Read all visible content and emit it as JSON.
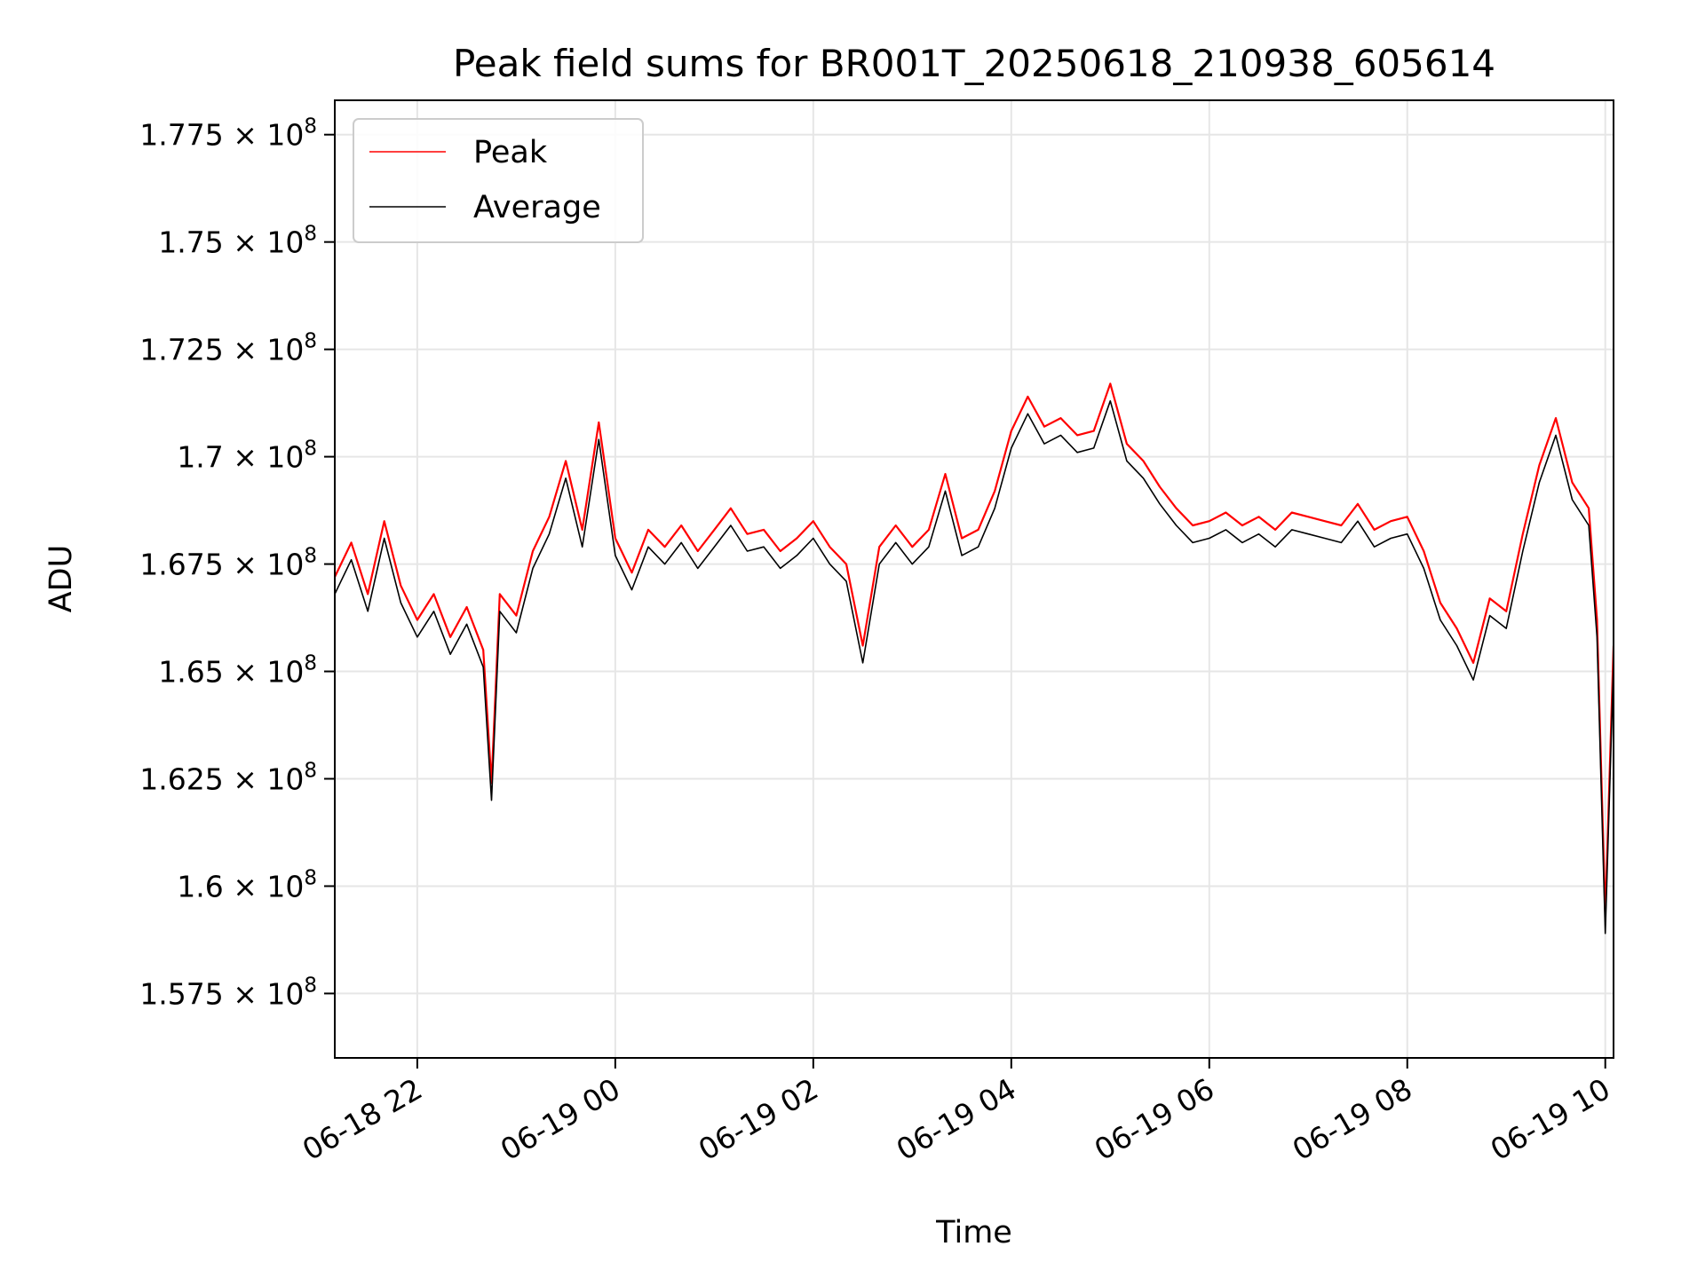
{
  "chart_data": {
    "type": "line",
    "title": "Peak field sums for BR001T_20250618_210938_605614",
    "xlabel": "Time",
    "ylabel": "ADU",
    "xlim": [
      "2025-06-18 21:10",
      "2025-06-19 10:05"
    ],
    "ylim": [
      156000000,
      178300000
    ],
    "grid": true,
    "legend_position": "upper-left",
    "x_ticks": [
      {
        "value": "2025-06-18 22:00",
        "label": "06-18 22"
      },
      {
        "value": "2025-06-19 00:00",
        "label": "06-19 00"
      },
      {
        "value": "2025-06-19 02:00",
        "label": "06-19 02"
      },
      {
        "value": "2025-06-19 04:00",
        "label": "06-19 04"
      },
      {
        "value": "2025-06-19 06:00",
        "label": "06-19 06"
      },
      {
        "value": "2025-06-19 08:00",
        "label": "06-19 08"
      },
      {
        "value": "2025-06-19 10:00",
        "label": "06-19 10"
      }
    ],
    "y_ticks": [
      {
        "value": 157500000,
        "mant": "1.575",
        "exp": "8"
      },
      {
        "value": 160000000,
        "mant": "1.6",
        "exp": "8"
      },
      {
        "value": 162500000,
        "mant": "1.625",
        "exp": "8"
      },
      {
        "value": 165000000,
        "mant": "1.65",
        "exp": "8"
      },
      {
        "value": 167500000,
        "mant": "1.675",
        "exp": "8"
      },
      {
        "value": 170000000,
        "mant": "1.7",
        "exp": "8"
      },
      {
        "value": 172500000,
        "mant": "1.725",
        "exp": "8"
      },
      {
        "value": 175000000,
        "mant": "1.75",
        "exp": "8"
      },
      {
        "value": 177500000,
        "mant": "1.775",
        "exp": "8"
      }
    ],
    "series": [
      {
        "name": "Peak",
        "color": "#ff0000",
        "x": [
          "2025-06-18 21:10",
          "2025-06-18 21:20",
          "2025-06-18 21:30",
          "2025-06-18 21:40",
          "2025-06-18 21:50",
          "2025-06-18 22:00",
          "2025-06-18 22:10",
          "2025-06-18 22:20",
          "2025-06-18 22:30",
          "2025-06-18 22:40",
          "2025-06-18 22:45",
          "2025-06-18 22:50",
          "2025-06-18 23:00",
          "2025-06-18 23:10",
          "2025-06-18 23:20",
          "2025-06-18 23:30",
          "2025-06-18 23:40",
          "2025-06-18 23:50",
          "2025-06-19 00:00",
          "2025-06-19 00:10",
          "2025-06-19 00:20",
          "2025-06-19 00:30",
          "2025-06-19 00:40",
          "2025-06-19 00:50",
          "2025-06-19 01:00",
          "2025-06-19 01:10",
          "2025-06-19 01:20",
          "2025-06-19 01:30",
          "2025-06-19 01:40",
          "2025-06-19 01:50",
          "2025-06-19 02:00",
          "2025-06-19 02:10",
          "2025-06-19 02:20",
          "2025-06-19 02:30",
          "2025-06-19 02:40",
          "2025-06-19 02:50",
          "2025-06-19 03:00",
          "2025-06-19 03:10",
          "2025-06-19 03:20",
          "2025-06-19 03:30",
          "2025-06-19 03:40",
          "2025-06-19 03:50",
          "2025-06-19 04:00",
          "2025-06-19 04:10",
          "2025-06-19 04:20",
          "2025-06-19 04:30",
          "2025-06-19 04:40",
          "2025-06-19 04:50",
          "2025-06-19 05:00",
          "2025-06-19 05:10",
          "2025-06-19 05:20",
          "2025-06-19 05:30",
          "2025-06-19 05:40",
          "2025-06-19 05:50",
          "2025-06-19 06:00",
          "2025-06-19 06:10",
          "2025-06-19 06:20",
          "2025-06-19 06:30",
          "2025-06-19 06:40",
          "2025-06-19 06:50",
          "2025-06-19 07:00",
          "2025-06-19 07:10",
          "2025-06-19 07:20",
          "2025-06-19 07:30",
          "2025-06-19 07:40",
          "2025-06-19 07:50",
          "2025-06-19 08:00",
          "2025-06-19 08:10",
          "2025-06-19 08:20",
          "2025-06-19 08:30",
          "2025-06-19 08:40",
          "2025-06-19 08:50",
          "2025-06-19 09:00",
          "2025-06-19 09:10",
          "2025-06-19 09:20",
          "2025-06-19 09:30",
          "2025-06-19 09:40",
          "2025-06-19 09:50",
          "2025-06-19 09:55",
          "2025-06-19 10:00",
          "2025-06-19 10:05"
        ],
        "y": [
          167200000,
          168000000,
          166800000,
          168500000,
          167000000,
          166200000,
          166800000,
          165800000,
          166500000,
          165500000,
          162400000,
          166800000,
          166300000,
          167800000,
          168600000,
          169900000,
          168300000,
          170800000,
          168100000,
          167300000,
          168300000,
          167900000,
          168400000,
          167800000,
          168300000,
          168800000,
          168200000,
          168300000,
          167800000,
          168100000,
          168500000,
          167900000,
          167500000,
          165600000,
          167900000,
          168400000,
          167900000,
          168300000,
          169600000,
          168100000,
          168300000,
          169200000,
          170600000,
          171400000,
          170700000,
          170900000,
          170500000,
          170600000,
          171700000,
          170300000,
          169900000,
          169300000,
          168800000,
          168400000,
          168500000,
          168700000,
          168400000,
          168600000,
          168300000,
          168700000,
          168600000,
          168500000,
          168400000,
          168900000,
          168300000,
          168500000,
          168600000,
          167800000,
          166600000,
          166000000,
          165200000,
          166700000,
          166400000,
          168200000,
          169800000,
          170900000,
          169400000,
          168800000,
          166200000,
          159300000,
          165600000
        ]
      },
      {
        "name": "Average",
        "color": "#000000",
        "x": [
          "2025-06-18 21:10",
          "2025-06-18 21:20",
          "2025-06-18 21:30",
          "2025-06-18 21:40",
          "2025-06-18 21:50",
          "2025-06-18 22:00",
          "2025-06-18 22:10",
          "2025-06-18 22:20",
          "2025-06-18 22:30",
          "2025-06-18 22:40",
          "2025-06-18 22:45",
          "2025-06-18 22:50",
          "2025-06-18 23:00",
          "2025-06-18 23:10",
          "2025-06-18 23:20",
          "2025-06-18 23:30",
          "2025-06-18 23:40",
          "2025-06-18 23:50",
          "2025-06-19 00:00",
          "2025-06-19 00:10",
          "2025-06-19 00:20",
          "2025-06-19 00:30",
          "2025-06-19 00:40",
          "2025-06-19 00:50",
          "2025-06-19 01:00",
          "2025-06-19 01:10",
          "2025-06-19 01:20",
          "2025-06-19 01:30",
          "2025-06-19 01:40",
          "2025-06-19 01:50",
          "2025-06-19 02:00",
          "2025-06-19 02:10",
          "2025-06-19 02:20",
          "2025-06-19 02:30",
          "2025-06-19 02:40",
          "2025-06-19 02:50",
          "2025-06-19 03:00",
          "2025-06-19 03:10",
          "2025-06-19 03:20",
          "2025-06-19 03:30",
          "2025-06-19 03:40",
          "2025-06-19 03:50",
          "2025-06-19 04:00",
          "2025-06-19 04:10",
          "2025-06-19 04:20",
          "2025-06-19 04:30",
          "2025-06-19 04:40",
          "2025-06-19 04:50",
          "2025-06-19 05:00",
          "2025-06-19 05:10",
          "2025-06-19 05:20",
          "2025-06-19 05:30",
          "2025-06-19 05:40",
          "2025-06-19 05:50",
          "2025-06-19 06:00",
          "2025-06-19 06:10",
          "2025-06-19 06:20",
          "2025-06-19 06:30",
          "2025-06-19 06:40",
          "2025-06-19 06:50",
          "2025-06-19 07:00",
          "2025-06-19 07:10",
          "2025-06-19 07:20",
          "2025-06-19 07:30",
          "2025-06-19 07:40",
          "2025-06-19 07:50",
          "2025-06-19 08:00",
          "2025-06-19 08:10",
          "2025-06-19 08:20",
          "2025-06-19 08:30",
          "2025-06-19 08:40",
          "2025-06-19 08:50",
          "2025-06-19 09:00",
          "2025-06-19 09:10",
          "2025-06-19 09:20",
          "2025-06-19 09:30",
          "2025-06-19 09:40",
          "2025-06-19 09:50",
          "2025-06-19 09:55",
          "2025-06-19 10:00",
          "2025-06-19 10:05"
        ],
        "y": [
          166800000,
          167600000,
          166400000,
          168100000,
          166600000,
          165800000,
          166400000,
          165400000,
          166100000,
          165100000,
          162000000,
          166400000,
          165900000,
          167400000,
          168200000,
          169500000,
          167900000,
          170400000,
          167700000,
          166900000,
          167900000,
          167500000,
          168000000,
          167400000,
          167900000,
          168400000,
          167800000,
          167900000,
          167400000,
          167700000,
          168100000,
          167500000,
          167100000,
          165200000,
          167500000,
          168000000,
          167500000,
          167900000,
          169200000,
          167700000,
          167900000,
          168800000,
          170200000,
          171000000,
          170300000,
          170500000,
          170100000,
          170200000,
          171300000,
          169900000,
          169500000,
          168900000,
          168400000,
          168000000,
          168100000,
          168300000,
          168000000,
          168200000,
          167900000,
          168300000,
          168200000,
          168100000,
          168000000,
          168500000,
          167900000,
          168100000,
          168200000,
          167400000,
          166200000,
          165600000,
          164800000,
          166300000,
          166000000,
          167800000,
          169400000,
          170500000,
          169000000,
          168400000,
          165800000,
          158900000,
          165200000
        ]
      }
    ]
  }
}
